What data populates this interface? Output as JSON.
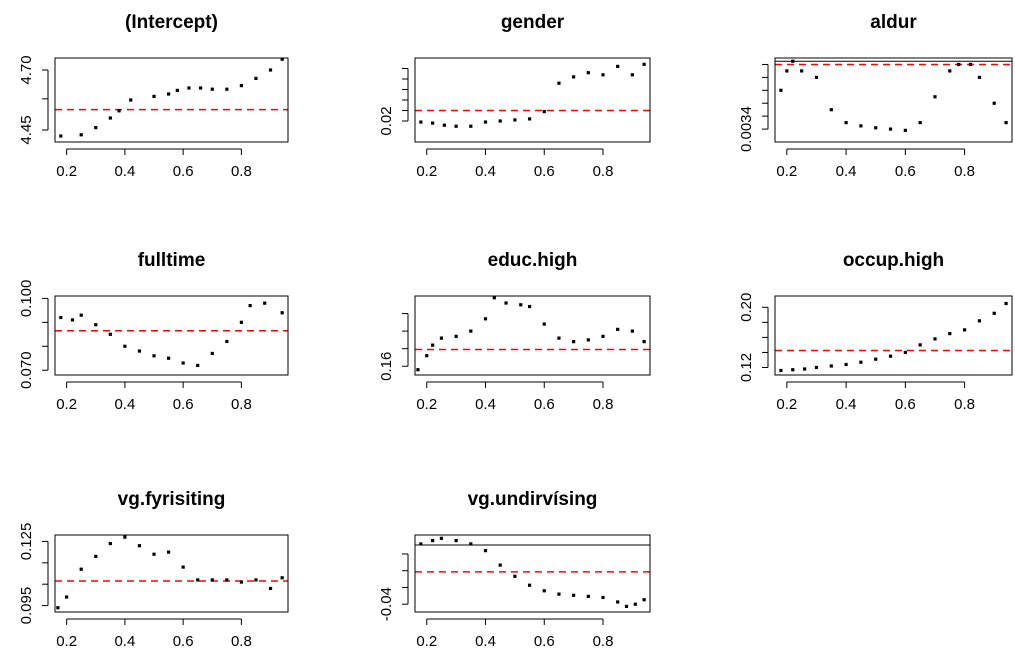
{
  "chart_data": [
    {
      "type": "scatter",
      "title": "(Intercept)",
      "xlabel": "",
      "ylabel": "",
      "xlim": [
        0.16,
        0.96
      ],
      "ylim": [
        4.4,
        4.75
      ],
      "x_ticks": [
        {
          "value": 0.2,
          "label": "0.2"
        },
        {
          "value": 0.4,
          "label": "0.4"
        },
        {
          "value": 0.6,
          "label": "0.6"
        },
        {
          "value": 0.8,
          "label": "0.8"
        }
      ],
      "y_ticks": [
        {
          "value": 4.45,
          "label": "4.45"
        },
        {
          "value": 4.58,
          "label": ""
        },
        {
          "value": 4.7,
          "label": "4.70"
        }
      ],
      "reference_line": {
        "value": 4.535,
        "color": "#ff0000",
        "style": "dashed"
      },
      "series": [
        {
          "x": [
            0.18,
            0.25,
            0.3,
            0.35,
            0.38,
            0.42,
            0.5,
            0.55,
            0.58,
            0.62,
            0.66,
            0.7,
            0.75,
            0.8,
            0.85,
            0.9,
            0.94
          ],
          "y": [
            4.425,
            4.43,
            4.46,
            4.5,
            4.53,
            4.575,
            4.59,
            4.6,
            4.615,
            4.625,
            4.625,
            4.62,
            4.62,
            4.635,
            4.665,
            4.7,
            4.745
          ]
        }
      ],
      "grid": false,
      "legend": "none"
    },
    {
      "type": "scatter",
      "title": "gender",
      "xlabel": "",
      "ylabel": "",
      "xlim": [
        0.16,
        0.96
      ],
      "ylim": [
        0.01,
        0.05
      ],
      "x_ticks": [
        {
          "value": 0.2,
          "label": "0.2"
        },
        {
          "value": 0.4,
          "label": "0.4"
        },
        {
          "value": 0.6,
          "label": "0.6"
        },
        {
          "value": 0.8,
          "label": "0.8"
        }
      ],
      "y_ticks": [
        {
          "value": 0.02,
          "label": "0.02"
        },
        {
          "value": 0.025,
          "label": ""
        },
        {
          "value": 0.03,
          "label": ""
        },
        {
          "value": 0.035,
          "label": ""
        },
        {
          "value": 0.04,
          "label": ""
        },
        {
          "value": 0.045,
          "label": ""
        }
      ],
      "reference_line": {
        "value": 0.025,
        "color": "#ff0000",
        "style": "dashed"
      },
      "series": [
        {
          "x": [
            0.18,
            0.22,
            0.26,
            0.3,
            0.35,
            0.4,
            0.45,
            0.5,
            0.55,
            0.6,
            0.65,
            0.7,
            0.75,
            0.8,
            0.85,
            0.9,
            0.94
          ],
          "y": [
            0.0195,
            0.019,
            0.018,
            0.0175,
            0.0175,
            0.0195,
            0.02,
            0.0205,
            0.021,
            0.0245,
            0.038,
            0.041,
            0.043,
            0.042,
            0.046,
            0.042,
            0.047
          ]
        }
      ],
      "grid": false,
      "legend": "none"
    },
    {
      "type": "scatter",
      "title": "aldur",
      "xlabel": "",
      "ylabel": "",
      "xlim": [
        0.16,
        0.96
      ],
      "ylim": [
        0.0032,
        0.0045
      ],
      "x_ticks": [
        {
          "value": 0.2,
          "label": "0.2"
        },
        {
          "value": 0.4,
          "label": "0.4"
        },
        {
          "value": 0.6,
          "label": "0.6"
        },
        {
          "value": 0.8,
          "label": "0.8"
        }
      ],
      "y_ticks": [
        {
          "value": 0.0034,
          "label": "0.0034"
        },
        {
          "value": 0.0036,
          "label": ""
        },
        {
          "value": 0.0038,
          "label": ""
        },
        {
          "value": 0.004,
          "label": ""
        },
        {
          "value": 0.0042,
          "label": ""
        },
        {
          "value": 0.0044,
          "label": ""
        }
      ],
      "reference_line": {
        "value": 0.0044,
        "color": "#ff0000",
        "style": "dashed"
      },
      "reference_line_2": {
        "value": 0.00445,
        "color": "#000000",
        "style": "solid"
      },
      "series": [
        {
          "x": [
            0.18,
            0.2,
            0.22,
            0.25,
            0.3,
            0.35,
            0.4,
            0.45,
            0.5,
            0.55,
            0.6,
            0.65,
            0.7,
            0.75,
            0.78,
            0.82,
            0.85,
            0.9,
            0.94
          ],
          "y": [
            0.004,
            0.0043,
            0.00445,
            0.0043,
            0.0042,
            0.0037,
            0.0035,
            0.00345,
            0.00342,
            0.0034,
            0.00338,
            0.0035,
            0.0039,
            0.0043,
            0.0044,
            0.0044,
            0.0042,
            0.0038,
            0.0035
          ]
        }
      ],
      "grid": false,
      "legend": "none"
    },
    {
      "type": "scatter",
      "title": "fulltime",
      "xlabel": "",
      "ylabel": "",
      "xlim": [
        0.16,
        0.96
      ],
      "ylim": [
        0.068,
        0.101
      ],
      "x_ticks": [
        {
          "value": 0.2,
          "label": "0.2"
        },
        {
          "value": 0.4,
          "label": "0.4"
        },
        {
          "value": 0.6,
          "label": "0.6"
        },
        {
          "value": 0.8,
          "label": "0.8"
        }
      ],
      "y_ticks": [
        {
          "value": 0.07,
          "label": "0.070"
        },
        {
          "value": 0.08,
          "label": ""
        },
        {
          "value": 0.09,
          "label": ""
        },
        {
          "value": 0.1,
          "label": "0.100"
        }
      ],
      "reference_line": {
        "value": 0.0865,
        "color": "#ff0000",
        "style": "dashed"
      },
      "series": [
        {
          "x": [
            0.18,
            0.22,
            0.25,
            0.3,
            0.35,
            0.4,
            0.45,
            0.5,
            0.55,
            0.6,
            0.65,
            0.7,
            0.75,
            0.8,
            0.83,
            0.88,
            0.94
          ],
          "y": [
            0.092,
            0.091,
            0.093,
            0.089,
            0.085,
            0.08,
            0.078,
            0.076,
            0.075,
            0.073,
            0.072,
            0.077,
            0.082,
            0.09,
            0.097,
            0.098,
            0.094
          ]
        }
      ],
      "grid": false,
      "legend": "none"
    },
    {
      "type": "scatter",
      "title": "educ.high",
      "xlabel": "",
      "ylabel": "",
      "xlim": [
        0.16,
        0.96
      ],
      "ylim": [
        0.155,
        0.2
      ],
      "x_ticks": [
        {
          "value": 0.2,
          "label": "0.2"
        },
        {
          "value": 0.4,
          "label": "0.4"
        },
        {
          "value": 0.6,
          "label": "0.6"
        },
        {
          "value": 0.8,
          "label": "0.8"
        }
      ],
      "y_ticks": [
        {
          "value": 0.16,
          "label": "0.16"
        },
        {
          "value": 0.17,
          "label": ""
        },
        {
          "value": 0.18,
          "label": ""
        },
        {
          "value": 0.19,
          "label": ""
        }
      ],
      "reference_line": {
        "value": 0.1695,
        "color": "#ff0000",
        "style": "dashed"
      },
      "series": [
        {
          "x": [
            0.17,
            0.2,
            0.22,
            0.25,
            0.3,
            0.35,
            0.4,
            0.43,
            0.47,
            0.52,
            0.55,
            0.6,
            0.65,
            0.7,
            0.75,
            0.8,
            0.85,
            0.9,
            0.94
          ],
          "y": [
            0.158,
            0.166,
            0.172,
            0.176,
            0.177,
            0.18,
            0.187,
            0.199,
            0.196,
            0.195,
            0.194,
            0.184,
            0.176,
            0.174,
            0.175,
            0.177,
            0.181,
            0.18,
            0.174
          ]
        }
      ],
      "grid": false,
      "legend": "none"
    },
    {
      "type": "scatter",
      "title": "occup.high",
      "xlabel": "",
      "ylabel": "",
      "xlim": [
        0.16,
        0.96
      ],
      "ylim": [
        0.11,
        0.215
      ],
      "x_ticks": [
        {
          "value": 0.2,
          "label": "0.2"
        },
        {
          "value": 0.4,
          "label": "0.4"
        },
        {
          "value": 0.6,
          "label": "0.6"
        },
        {
          "value": 0.8,
          "label": "0.8"
        }
      ],
      "y_ticks": [
        {
          "value": 0.12,
          "label": "0.12"
        },
        {
          "value": 0.14,
          "label": ""
        },
        {
          "value": 0.16,
          "label": ""
        },
        {
          "value": 0.18,
          "label": ""
        },
        {
          "value": 0.2,
          "label": "0.20"
        }
      ],
      "reference_line": {
        "value": 0.1425,
        "color": "#ff0000",
        "style": "dashed"
      },
      "series": [
        {
          "x": [
            0.18,
            0.22,
            0.26,
            0.3,
            0.35,
            0.4,
            0.45,
            0.5,
            0.55,
            0.6,
            0.65,
            0.7,
            0.75,
            0.8,
            0.85,
            0.9,
            0.94
          ],
          "y": [
            0.116,
            0.117,
            0.118,
            0.12,
            0.122,
            0.124,
            0.127,
            0.131,
            0.135,
            0.14,
            0.15,
            0.158,
            0.165,
            0.17,
            0.182,
            0.192,
            0.205
          ]
        }
      ],
      "grid": false,
      "legend": "none"
    },
    {
      "type": "scatter",
      "title": "vg.fyrisiting",
      "xlabel": "",
      "ylabel": "",
      "xlim": [
        0.16,
        0.96
      ],
      "ylim": [
        0.092,
        0.128
      ],
      "x_ticks": [
        {
          "value": 0.2,
          "label": "0.2"
        },
        {
          "value": 0.4,
          "label": "0.4"
        },
        {
          "value": 0.6,
          "label": "0.6"
        },
        {
          "value": 0.8,
          "label": "0.8"
        }
      ],
      "y_ticks": [
        {
          "value": 0.095,
          "label": "0.095"
        },
        {
          "value": 0.105,
          "label": ""
        },
        {
          "value": 0.115,
          "label": ""
        },
        {
          "value": 0.125,
          "label": "0.125"
        }
      ],
      "reference_line": {
        "value": 0.1065,
        "color": "#ff0000",
        "style": "dashed"
      },
      "series": [
        {
          "x": [
            0.17,
            0.2,
            0.25,
            0.3,
            0.35,
            0.4,
            0.45,
            0.5,
            0.55,
            0.6,
            0.65,
            0.7,
            0.75,
            0.8,
            0.85,
            0.9,
            0.94
          ],
          "y": [
            0.094,
            0.099,
            0.112,
            0.118,
            0.124,
            0.127,
            0.123,
            0.119,
            0.12,
            0.113,
            0.107,
            0.107,
            0.107,
            0.106,
            0.107,
            0.103,
            0.108
          ]
        }
      ],
      "grid": false,
      "legend": "none"
    },
    {
      "type": "scatter",
      "title": "vg.undirvísing",
      "xlabel": "",
      "ylabel": "",
      "xlim": [
        0.16,
        0.96
      ],
      "ylim": [
        -0.047,
        0.022
      ],
      "x_ticks": [
        {
          "value": 0.2,
          "label": "0.2"
        },
        {
          "value": 0.4,
          "label": "0.4"
        },
        {
          "value": 0.6,
          "label": "0.6"
        },
        {
          "value": 0.8,
          "label": "0.8"
        }
      ],
      "y_ticks": [
        {
          "value": -0.04,
          "label": "-0.04"
        },
        {
          "value": -0.025,
          "label": ""
        },
        {
          "value": -0.01,
          "label": ""
        },
        {
          "value": 0.005,
          "label": ""
        }
      ],
      "reference_line": {
        "value": -0.011,
        "color": "#ff0000",
        "style": "dashed"
      },
      "reference_line_2": {
        "value": 0.013,
        "color": "#000000",
        "style": "solid"
      },
      "series": [
        {
          "x": [
            0.18,
            0.22,
            0.25,
            0.3,
            0.35,
            0.4,
            0.45,
            0.5,
            0.55,
            0.6,
            0.65,
            0.7,
            0.75,
            0.8,
            0.85,
            0.88,
            0.91,
            0.94
          ],
          "y": [
            0.014,
            0.017,
            0.019,
            0.017,
            0.014,
            0.008,
            -0.005,
            -0.015,
            -0.023,
            -0.028,
            -0.031,
            -0.032,
            -0.033,
            -0.034,
            -0.038,
            -0.042,
            -0.04,
            -0.036
          ]
        }
      ],
      "grid": false,
      "legend": "none"
    }
  ]
}
